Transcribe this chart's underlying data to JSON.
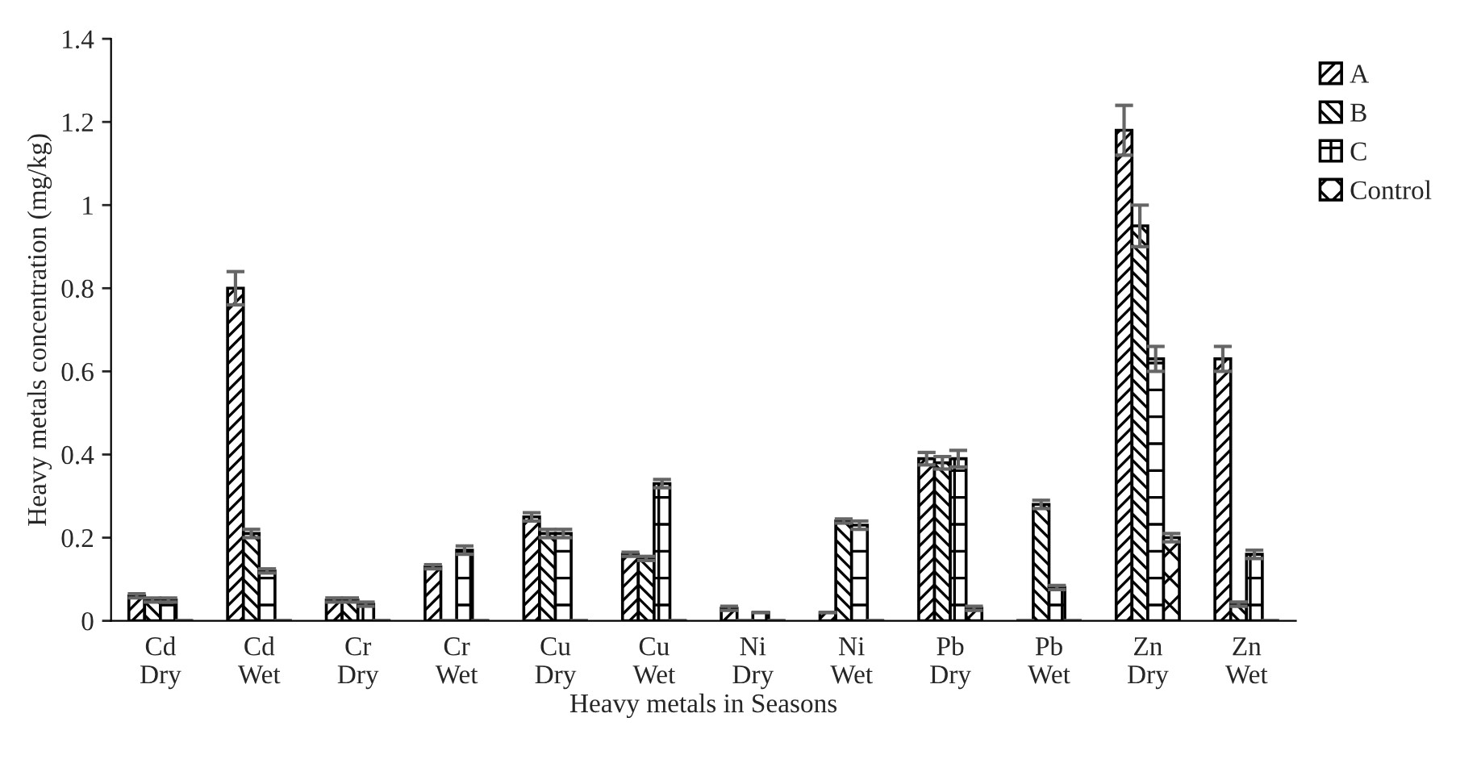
{
  "chart_data": {
    "type": "bar",
    "xlabel": "Heavy metals in Seasons",
    "ylabel": "Heavy metals concentration (mg/kg)",
    "categories": [
      "Cd Dry",
      "Cd Wet",
      "Cr Dry",
      "Cr Wet",
      "Cu Dry",
      "Cu Wet",
      "Ni Dry",
      "Ni Wet",
      "Pb Dry",
      "Pb Wet",
      "Zn Dry",
      "Zn Wet"
    ],
    "series": [
      {
        "name": "A",
        "color": "#000000",
        "values": [
          0.06,
          0.8,
          0.05,
          0.13,
          0.25,
          0.16,
          0.03,
          0.02,
          0.39,
          0,
          1.18,
          0.63
        ],
        "errors": [
          0.005,
          0.04,
          0.005,
          0.005,
          0.01,
          0.005,
          0.005,
          null,
          0.015,
          0,
          0.06,
          0.03
        ]
      },
      {
        "name": "B",
        "color": "#000000",
        "values": [
          0.05,
          0.21,
          0.05,
          0,
          0.21,
          0.15,
          0,
          0.24,
          0.38,
          0.28,
          0.95,
          0.04
        ],
        "errors": [
          0.005,
          0.01,
          0.005,
          0,
          0.01,
          0.005,
          0,
          0.005,
          0.015,
          0.01,
          0.05,
          0.005
        ]
      },
      {
        "name": "C",
        "color": "#000000",
        "values": [
          0.05,
          0.12,
          0.04,
          0.17,
          0.21,
          0.33,
          0.02,
          0.23,
          0.39,
          0.08,
          0.63,
          0.16
        ],
        "errors": [
          0.005,
          0.005,
          0.005,
          0.01,
          0.01,
          0.01,
          null,
          0.01,
          0.02,
          0.005,
          0.03,
          0.01
        ]
      },
      {
        "name": "Control",
        "color": "#000000",
        "values": [
          0,
          0,
          0,
          0,
          0,
          0,
          0,
          0,
          0.03,
          0,
          0.2,
          0
        ],
        "errors": [
          0,
          0,
          0,
          0,
          0,
          0,
          0,
          0,
          0.005,
          0,
          0.01,
          0
        ]
      }
    ],
    "ylim": [
      0,
      1.4
    ],
    "yticks": [
      0,
      {
        "value": 0.2,
        "label": "0.2"
      },
      {
        "value": 0.4,
        "label": "0.4"
      },
      {
        "value": 0.6,
        "label": "0.6"
      },
      {
        "value": 0.8,
        "label": "0.8"
      },
      1,
      {
        "value": 1.2,
        "label": "1.2"
      },
      {
        "value": 1.4,
        "label": "1.4"
      }
    ],
    "grid": false,
    "legend": "top right"
  }
}
